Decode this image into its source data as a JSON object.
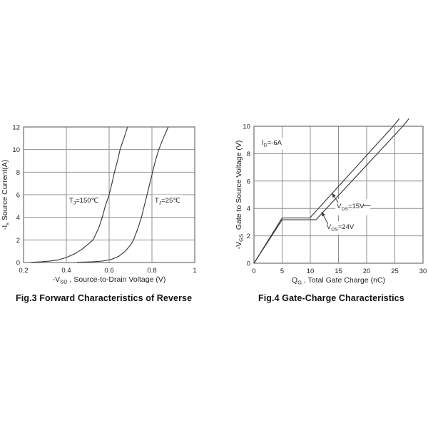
{
  "page": {
    "background": "#ffffff"
  },
  "captions": {
    "fig3": "Fig.3 Forward Characteristics of Reverse",
    "fig4": "Fig.4 Gate-Charge Characteristics"
  },
  "style": {
    "grid_color": "#8f8f8f",
    "border_color": "#6f6f6f",
    "curve_color": "#3a3a3a",
    "text_color": "#1f1f1f",
    "label_bg": "#ffffff"
  },
  "chart_data": [
    {
      "type": "line",
      "title": "Fig.3 Forward Characteristics of Reverse",
      "xlabel": "-VSD , Source-to-Drain Voltage (V)",
      "xlabel_parts": {
        "pre": "-V",
        "sub": "SD",
        "post": " , Source-to-Drain Voltage (V)"
      },
      "ylabel": "-Is Source Current(A)",
      "ylabel_parts": {
        "pre": "-I",
        "sub": "s",
        "post": " Source Current(A)"
      },
      "xlim": [
        0.2,
        1
      ],
      "ylim": [
        0,
        12
      ],
      "xticks": [
        0.2,
        0.4,
        0.6,
        0.8,
        1
      ],
      "xtick_labels": [
        "0.2",
        "0.4",
        "0.6",
        "0.8",
        "1"
      ],
      "yticks": [
        0,
        2,
        4,
        6,
        8,
        10,
        12
      ],
      "ytick_labels": [
        "0",
        "2",
        "4",
        "6",
        "8",
        "10",
        "12"
      ],
      "grid": true,
      "legend_position": "inline annotations",
      "series": [
        {
          "name": "TJ=150℃",
          "points": [
            [
              0.235,
              0.02
            ],
            [
              0.28,
              0.06
            ],
            [
              0.32,
              0.12
            ],
            [
              0.36,
              0.22
            ],
            [
              0.4,
              0.45
            ],
            [
              0.44,
              0.78
            ],
            [
              0.475,
              1.2
            ],
            [
              0.5,
              1.6
            ],
            [
              0.525,
              2
            ],
            [
              0.55,
              3
            ],
            [
              0.568,
              4
            ],
            [
              0.582,
              5
            ],
            [
              0.6,
              6
            ],
            [
              0.613,
              7
            ],
            [
              0.625,
              8
            ],
            [
              0.639,
              9
            ],
            [
              0.651,
              10
            ],
            [
              0.669,
              11
            ],
            [
              0.686,
              12
            ]
          ]
        },
        {
          "name": "TJ=25℃",
          "points": [
            [
              0.45,
              0.02
            ],
            [
              0.52,
              0.06
            ],
            [
              0.57,
              0.13
            ],
            [
              0.61,
              0.27
            ],
            [
              0.645,
              0.55
            ],
            [
              0.675,
              1.0
            ],
            [
              0.7,
              1.55
            ],
            [
              0.714,
              2
            ],
            [
              0.734,
              3
            ],
            [
              0.751,
              4
            ],
            [
              0.764,
              5
            ],
            [
              0.777,
              6
            ],
            [
              0.79,
              7
            ],
            [
              0.803,
              8
            ],
            [
              0.816,
              9
            ],
            [
              0.832,
              10
            ],
            [
              0.853,
              11
            ],
            [
              0.876,
              12
            ]
          ]
        }
      ],
      "annotations": [
        {
          "pre": "T",
          "sub": "J",
          "post": "=150℃",
          "pos": [
            0.413,
            5.3
          ],
          "bg": true,
          "bg_pad": [
            2,
            3,
            2,
            2
          ]
        },
        {
          "pre": "T",
          "sub": "J",
          "post": "=25℃",
          "pos": [
            0.813,
            5.3
          ],
          "bg": true,
          "bg_pad": [
            2,
            3,
            2,
            2
          ]
        }
      ],
      "arrows": [],
      "extra_lines": []
    },
    {
      "type": "line",
      "title": "Fig.4 Gate-Charge Characteristics",
      "xlabel": "QG , Total Gate Charge (nC)",
      "xlabel_parts": {
        "pre": "Q",
        "sub": "G",
        "post": " , Total Gate Charge (nC)"
      },
      "ylabel": "-VGS  Gate to Source Voltage (V)",
      "ylabel_parts": {
        "pre": "-V",
        "sub": "GS",
        "post": "  Gate to Source Voltage (V)"
      },
      "xlim": [
        0,
        30
      ],
      "ylim": [
        0,
        10
      ],
      "xticks": [
        0,
        5,
        10,
        15,
        20,
        25,
        30
      ],
      "xtick_labels": [
        "0",
        "5",
        "10",
        "15",
        "20",
        "25",
        "30"
      ],
      "yticks": [
        0,
        2,
        4,
        6,
        8,
        10
      ],
      "ytick_labels": [
        "0",
        "2",
        "4",
        "6",
        "8",
        "10"
      ],
      "grid": true,
      "legend_position": "inline annotations",
      "series": [
        {
          "name": "VDS=15V",
          "points": [
            [
              0,
              0
            ],
            [
              5,
              3.3
            ],
            [
              9.9,
              3.3
            ],
            [
              24.7,
              10
            ],
            [
              25.8,
              10.55
            ]
          ]
        },
        {
          "name": "VDS=24V",
          "points": [
            [
              0,
              0
            ],
            [
              5,
              3.17
            ],
            [
              11,
              3.17
            ],
            [
              26.4,
              10
            ],
            [
              27.5,
              10.55
            ]
          ]
        }
      ],
      "annotations": [
        {
          "pre": "I",
          "sub": "D",
          "post": "=-6A",
          "pos": [
            1.4,
            8.65
          ],
          "bg": true,
          "bg_pad": [
            2,
            2,
            2,
            2
          ]
        },
        {
          "pre": "V",
          "sub": "DS",
          "post": "=15V",
          "pos": [
            14.7,
            4.0
          ],
          "bg": true,
          "bg_pad": [
            2,
            5,
            8,
            5
          ]
        },
        {
          "pre": "V",
          "sub": "DS",
          "post": "=24V",
          "pos": [
            12.9,
            2.5
          ],
          "bg": true,
          "bg_pad": [
            2,
            3,
            4,
            3
          ]
        }
      ],
      "arrows": [
        {
          "from": [
            14.95,
            4.42
          ],
          "to": [
            13.85,
            5.12
          ]
        },
        {
          "from": [
            13.15,
            2.85
          ],
          "to": [
            12.0,
            3.75
          ]
        }
      ],
      "extra_lines": [
        {
          "from": [
            19.3,
            4.2
          ],
          "to": [
            20.7,
            4.2
          ]
        }
      ]
    }
  ]
}
